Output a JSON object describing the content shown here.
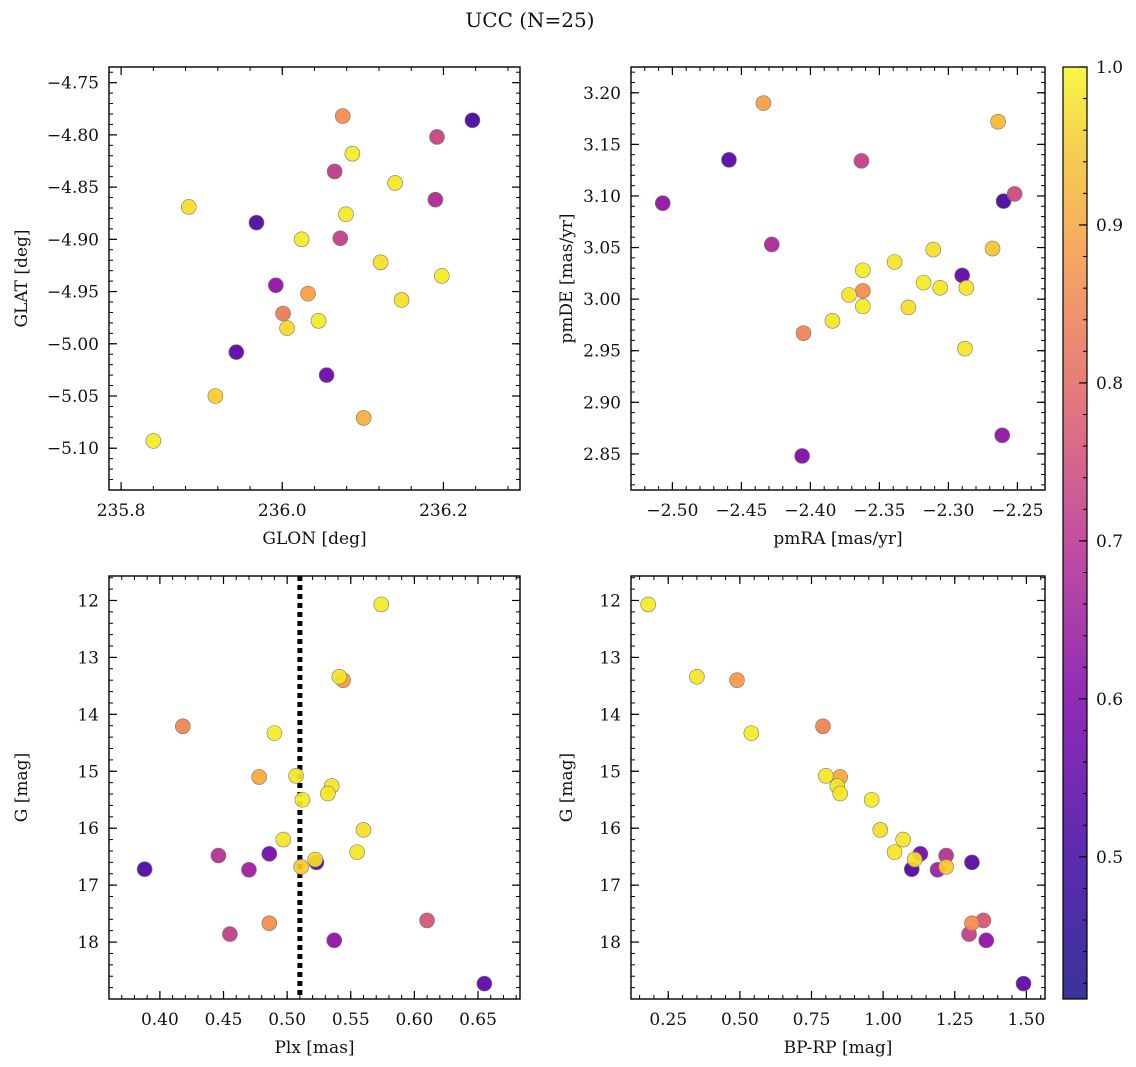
{
  "figure": {
    "title": "UCC (N=25)",
    "colormap": "plasma",
    "colorbar": {
      "min": 0.41,
      "max": 1.0,
      "ticks": [
        0.5,
        0.6,
        0.7,
        0.8,
        0.9,
        1.0
      ],
      "tick_labels": [
        "0.5",
        "0.6",
        "0.7",
        "0.8",
        "0.9",
        "1.0"
      ]
    }
  },
  "chart_data": [
    {
      "type": "scatter",
      "title": "",
      "xlabel": "GLON [deg]",
      "ylabel": "GLAT [deg]",
      "xlim": [
        235.785,
        236.295
      ],
      "ylim": [
        -5.14,
        -4.735
      ],
      "x_inverted": false,
      "y_inverted": false,
      "xticks": [
        235.8,
        236.0,
        236.2
      ],
      "xtick_labels": [
        "235.8",
        "236.0",
        "236.2"
      ],
      "yticks": [
        -4.75,
        -4.8,
        -4.85,
        -4.9,
        -4.95,
        -5.0,
        -5.05,
        -5.1
      ],
      "ytick_labels": [
        "−4.75",
        "−4.80",
        "−4.85",
        "−4.90",
        "−4.95",
        "−5.00",
        "−5.05",
        "−5.10"
      ],
      "points": [
        {
          "x": 236.236,
          "y": -4.786,
          "c": 0.43
        },
        {
          "x": 236.075,
          "y": -4.782,
          "c": 0.82
        },
        {
          "x": 236.192,
          "y": -4.802,
          "c": 0.66
        },
        {
          "x": 236.087,
          "y": -4.818,
          "c": 0.98
        },
        {
          "x": 236.065,
          "y": -4.835,
          "c": 0.64
        },
        {
          "x": 236.14,
          "y": -4.846,
          "c": 0.97
        },
        {
          "x": 236.19,
          "y": -4.862,
          "c": 0.6
        },
        {
          "x": 235.884,
          "y": -4.869,
          "c": 0.96
        },
        {
          "x": 236.079,
          "y": -4.876,
          "c": 0.98
        },
        {
          "x": 235.968,
          "y": -4.884,
          "c": 0.44
        },
        {
          "x": 236.024,
          "y": -4.9,
          "c": 0.98
        },
        {
          "x": 236.072,
          "y": -4.899,
          "c": 0.65
        },
        {
          "x": 236.122,
          "y": -4.922,
          "c": 0.96
        },
        {
          "x": 236.198,
          "y": -4.935,
          "c": 0.98
        },
        {
          "x": 235.992,
          "y": -4.944,
          "c": 0.55
        },
        {
          "x": 236.032,
          "y": -4.952,
          "c": 0.85
        },
        {
          "x": 236.148,
          "y": -4.958,
          "c": 0.96
        },
        {
          "x": 236.001,
          "y": -4.971,
          "c": 0.78
        },
        {
          "x": 236.045,
          "y": -4.978,
          "c": 0.98
        },
        {
          "x": 236.006,
          "y": -4.985,
          "c": 0.95
        },
        {
          "x": 235.943,
          "y": -5.008,
          "c": 0.45
        },
        {
          "x": 236.055,
          "y": -5.03,
          "c": 0.48
        },
        {
          "x": 235.917,
          "y": -5.05,
          "c": 0.93
        },
        {
          "x": 236.101,
          "y": -5.071,
          "c": 0.88
        },
        {
          "x": 235.84,
          "y": -5.093,
          "c": 0.98
        }
      ]
    },
    {
      "type": "scatter",
      "title": "",
      "xlabel": "pmRA [mas/yr]",
      "ylabel": "pmDE [mas/yr]",
      "xlim": [
        -2.53,
        -2.23
      ],
      "ylim": [
        2.815,
        3.225
      ],
      "x_inverted": false,
      "y_inverted": false,
      "xticks": [
        -2.5,
        -2.45,
        -2.4,
        -2.35,
        -2.3,
        -2.25
      ],
      "xtick_labels": [
        "−2.50",
        "−2.45",
        "−2.40",
        "−2.35",
        "−2.30",
        "−2.25"
      ],
      "yticks": [
        2.85,
        2.9,
        2.95,
        3.0,
        3.05,
        3.1,
        3.15,
        3.2
      ],
      "ytick_labels": [
        "2.85",
        "2.90",
        "2.95",
        "3.00",
        "3.05",
        "3.10",
        "3.15",
        "3.20"
      ],
      "points": [
        {
          "x": -2.434,
          "y": 3.19,
          "c": 0.85
        },
        {
          "x": -2.264,
          "y": 3.172,
          "c": 0.9
        },
        {
          "x": -2.459,
          "y": 3.135,
          "c": 0.45
        },
        {
          "x": -2.363,
          "y": 3.134,
          "c": 0.65
        },
        {
          "x": -2.252,
          "y": 3.102,
          "c": 0.68
        },
        {
          "x": -2.26,
          "y": 3.095,
          "c": 0.43
        },
        {
          "x": -2.507,
          "y": 3.093,
          "c": 0.55
        },
        {
          "x": -2.428,
          "y": 3.053,
          "c": 0.6
        },
        {
          "x": -2.268,
          "y": 3.049,
          "c": 0.92
        },
        {
          "x": -2.311,
          "y": 3.048,
          "c": 0.96
        },
        {
          "x": -2.339,
          "y": 3.036,
          "c": 0.97
        },
        {
          "x": -2.362,
          "y": 3.028,
          "c": 0.98
        },
        {
          "x": -2.29,
          "y": 3.023,
          "c": 0.46
        },
        {
          "x": -2.318,
          "y": 3.016,
          "c": 0.98
        },
        {
          "x": -2.306,
          "y": 3.011,
          "c": 0.97
        },
        {
          "x": -2.287,
          "y": 3.011,
          "c": 0.97
        },
        {
          "x": -2.362,
          "y": 3.008,
          "c": 0.82
        },
        {
          "x": -2.372,
          "y": 3.004,
          "c": 0.97
        },
        {
          "x": -2.362,
          "y": 2.993,
          "c": 0.98
        },
        {
          "x": -2.329,
          "y": 2.992,
          "c": 0.96
        },
        {
          "x": -2.384,
          "y": 2.979,
          "c": 0.97
        },
        {
          "x": -2.405,
          "y": 2.967,
          "c": 0.8
        },
        {
          "x": -2.288,
          "y": 2.952,
          "c": 0.97
        },
        {
          "x": -2.261,
          "y": 2.868,
          "c": 0.55
        },
        {
          "x": -2.406,
          "y": 2.848,
          "c": 0.52
        }
      ]
    },
    {
      "type": "scatter",
      "title": "",
      "xlabel": "Plx [mas]",
      "ylabel": "G [mag]",
      "xlim": [
        0.36,
        0.683
      ],
      "ylim": [
        11.57,
        19.0
      ],
      "x_inverted": false,
      "y_inverted": true,
      "xticks": [
        0.4,
        0.45,
        0.5,
        0.55,
        0.6,
        0.65
      ],
      "xtick_labels": [
        "0.40",
        "0.45",
        "0.50",
        "0.55",
        "0.60",
        "0.65"
      ],
      "yticks": [
        12,
        13,
        14,
        15,
        16,
        17,
        18
      ],
      "ytick_labels": [
        "12",
        "13",
        "14",
        "15",
        "16",
        "17",
        "18"
      ],
      "vline": {
        "x": 0.51,
        "style": "dotted"
      },
      "points": [
        {
          "x": 0.574,
          "y": 12.07,
          "c": 0.98
        },
        {
          "x": 0.541,
          "y": 13.34,
          "c": 0.97
        },
        {
          "x": 0.544,
          "y": 13.4,
          "c": 0.84
        },
        {
          "x": 0.418,
          "y": 14.21,
          "c": 0.8
        },
        {
          "x": 0.49,
          "y": 14.33,
          "c": 0.98
        },
        {
          "x": 0.478,
          "y": 15.1,
          "c": 0.87
        },
        {
          "x": 0.507,
          "y": 15.08,
          "c": 0.97
        },
        {
          "x": 0.535,
          "y": 15.26,
          "c": 0.97
        },
        {
          "x": 0.532,
          "y": 15.39,
          "c": 0.97
        },
        {
          "x": 0.512,
          "y": 15.5,
          "c": 0.98
        },
        {
          "x": 0.56,
          "y": 16.03,
          "c": 0.96
        },
        {
          "x": 0.497,
          "y": 16.2,
          "c": 0.97
        },
        {
          "x": 0.555,
          "y": 16.42,
          "c": 0.97
        },
        {
          "x": 0.486,
          "y": 16.45,
          "c": 0.5
        },
        {
          "x": 0.446,
          "y": 16.48,
          "c": 0.62
        },
        {
          "x": 0.522,
          "y": 16.55,
          "c": 0.96
        },
        {
          "x": 0.523,
          "y": 16.6,
          "c": 0.45
        },
        {
          "x": 0.511,
          "y": 16.68,
          "c": 0.93
        },
        {
          "x": 0.388,
          "y": 16.72,
          "c": 0.44
        },
        {
          "x": 0.47,
          "y": 16.73,
          "c": 0.58
        },
        {
          "x": 0.61,
          "y": 17.62,
          "c": 0.7
        },
        {
          "x": 0.486,
          "y": 17.67,
          "c": 0.82
        },
        {
          "x": 0.455,
          "y": 17.86,
          "c": 0.65
        },
        {
          "x": 0.537,
          "y": 17.97,
          "c": 0.55
        },
        {
          "x": 0.655,
          "y": 18.73,
          "c": 0.46
        }
      ]
    },
    {
      "type": "scatter",
      "title": "",
      "xlabel": "BP-RP [mag]",
      "ylabel": "G [mag]",
      "xlim": [
        0.12,
        1.565
      ],
      "ylim": [
        11.57,
        19.0
      ],
      "x_inverted": false,
      "y_inverted": true,
      "xticks": [
        0.25,
        0.5,
        0.75,
        1.0,
        1.25,
        1.5
      ],
      "xtick_labels": [
        "0.25",
        "0.50",
        "0.75",
        "1.00",
        "1.25",
        "1.50"
      ],
      "yticks": [
        12,
        13,
        14,
        15,
        16,
        17,
        18
      ],
      "ytick_labels": [
        "12",
        "13",
        "14",
        "15",
        "16",
        "17",
        "18"
      ],
      "points": [
        {
          "x": 0.18,
          "y": 12.07,
          "c": 0.98
        },
        {
          "x": 0.35,
          "y": 13.34,
          "c": 0.97
        },
        {
          "x": 0.49,
          "y": 13.4,
          "c": 0.84
        },
        {
          "x": 0.79,
          "y": 14.21,
          "c": 0.8
        },
        {
          "x": 0.54,
          "y": 14.33,
          "c": 0.98
        },
        {
          "x": 0.8,
          "y": 15.08,
          "c": 0.97
        },
        {
          "x": 0.85,
          "y": 15.1,
          "c": 0.87
        },
        {
          "x": 0.84,
          "y": 15.26,
          "c": 0.97
        },
        {
          "x": 0.85,
          "y": 15.39,
          "c": 0.97
        },
        {
          "x": 0.96,
          "y": 15.5,
          "c": 0.98
        },
        {
          "x": 0.99,
          "y": 16.03,
          "c": 0.96
        },
        {
          "x": 1.07,
          "y": 16.2,
          "c": 0.97
        },
        {
          "x": 1.04,
          "y": 16.42,
          "c": 0.97
        },
        {
          "x": 1.13,
          "y": 16.45,
          "c": 0.5
        },
        {
          "x": 1.22,
          "y": 16.48,
          "c": 0.62
        },
        {
          "x": 1.11,
          "y": 16.55,
          "c": 0.96
        },
        {
          "x": 1.31,
          "y": 16.6,
          "c": 0.45
        },
        {
          "x": 1.22,
          "y": 16.68,
          "c": 0.93
        },
        {
          "x": 1.1,
          "y": 16.72,
          "c": 0.44
        },
        {
          "x": 1.19,
          "y": 16.73,
          "c": 0.58
        },
        {
          "x": 1.35,
          "y": 17.62,
          "c": 0.7
        },
        {
          "x": 1.31,
          "y": 17.67,
          "c": 0.82
        },
        {
          "x": 1.3,
          "y": 17.86,
          "c": 0.65
        },
        {
          "x": 1.36,
          "y": 17.97,
          "c": 0.55
        },
        {
          "x": 1.49,
          "y": 18.73,
          "c": 0.46
        }
      ]
    }
  ]
}
